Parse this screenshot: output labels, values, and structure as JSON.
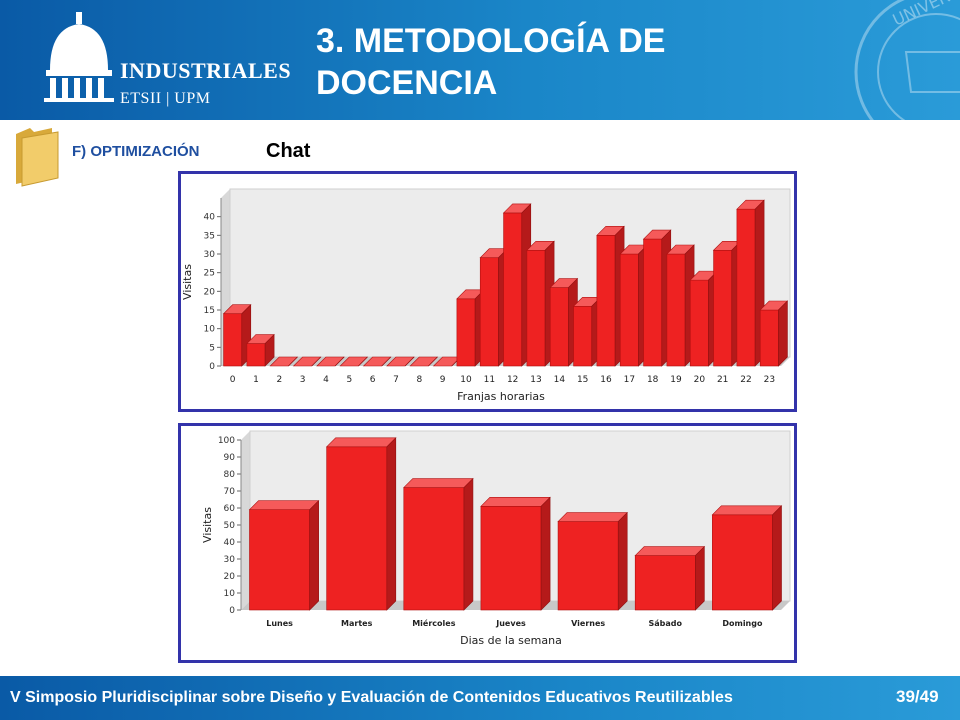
{
  "header": {
    "title": "3. METODOLOGÍA DE DOCENCIA",
    "logo_word": "INDUSTRIALES",
    "logo_sub": "ETSII | UPM",
    "seal_text": "UNIVERSIDAD"
  },
  "section": {
    "label": "F) OPTIMIZACIÓN",
    "topic": "Chat"
  },
  "chart_data": [
    {
      "type": "bar",
      "xlabel": "Franjas horarias",
      "ylabel": "Visitas",
      "ylim": [
        0,
        45
      ],
      "yticks": [
        0,
        5,
        10,
        15,
        20,
        25,
        30,
        35,
        40
      ],
      "categories": [
        "0",
        "1",
        "2",
        "3",
        "4",
        "5",
        "6",
        "7",
        "8",
        "9",
        "10",
        "11",
        "12",
        "13",
        "14",
        "15",
        "16",
        "17",
        "18",
        "19",
        "20",
        "21",
        "22",
        "23"
      ],
      "values": [
        14,
        6,
        0,
        0,
        0,
        0,
        0,
        0,
        0,
        0,
        18,
        29,
        41,
        31,
        21,
        16,
        35,
        30,
        34,
        30,
        23,
        31,
        42,
        15
      ],
      "color": "#ee2222",
      "grid": false
    },
    {
      "type": "bar",
      "xlabel": "Dias de la semana",
      "ylabel": "Visitas",
      "ylim": [
        0,
        100
      ],
      "yticks": [
        0,
        10,
        20,
        30,
        40,
        50,
        60,
        70,
        80,
        90,
        100
      ],
      "categories": [
        "Lunes",
        "Martes",
        "Miércoles",
        "Jueves",
        "Viernes",
        "Sábado",
        "Domingo"
      ],
      "values": [
        59,
        96,
        72,
        61,
        52,
        32,
        56
      ],
      "color": "#ee2222",
      "grid": false
    }
  ],
  "footer": {
    "text": "V Simposio Pluridisciplinar sobre Diseño y Evaluación de Contenidos Educativos Reutilizables",
    "page": "39/49"
  }
}
